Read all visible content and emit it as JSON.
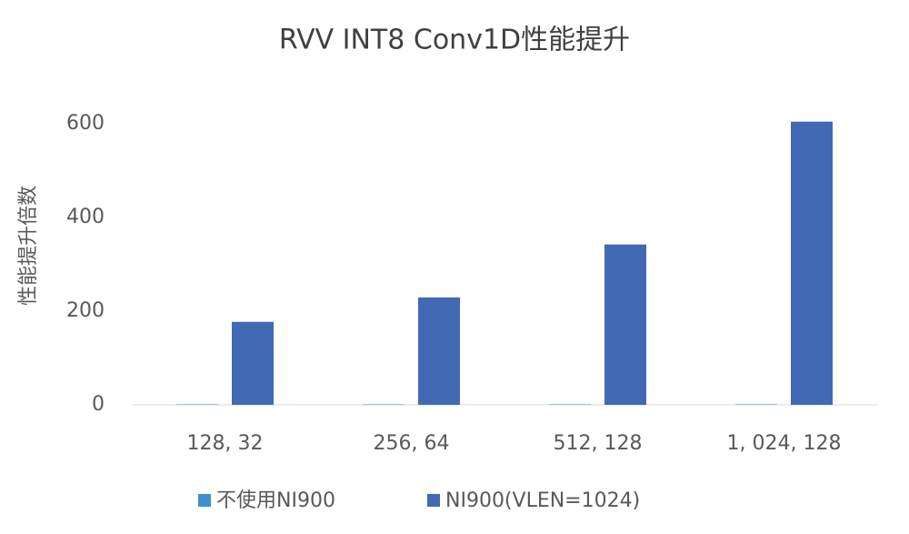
{
  "chart_data": {
    "type": "bar",
    "title": "RVV INT8 Conv1D性能提升",
    "y_label": "性能提升倍数",
    "categories": [
      "128, 32",
      "256, 64",
      "512, 128",
      "1, 024, 128"
    ],
    "series": [
      {
        "name": "不使用NI900",
        "color": "#3f8fd2",
        "values": [
          1,
          1,
          1,
          1
        ]
      },
      {
        "name": "NI900(VLEN=1024)",
        "color": "#4169b4",
        "values": [
          177,
          229,
          342,
          604
        ]
      }
    ],
    "ylim": [
      0,
      650
    ],
    "yticks": [
      0,
      200,
      400,
      600
    ],
    "grid": false,
    "legend": "bottom"
  }
}
